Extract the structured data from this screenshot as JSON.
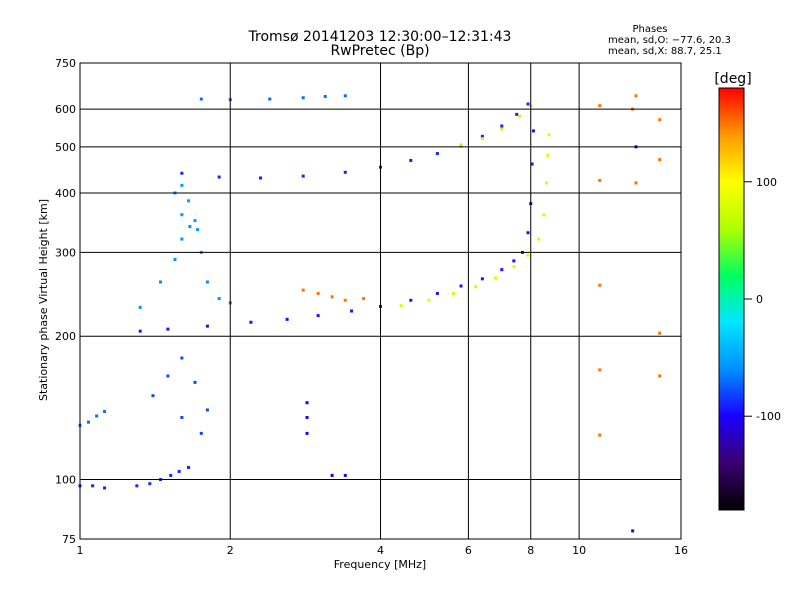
{
  "chart_data": {
    "type": "scatter",
    "title": "Tromsø 20141203 12:30:00–12:31:43",
    "subtitle": "RwPretec (Bp)",
    "xlabel": "Frequency [MHz]",
    "ylabel": "Stationary phase Virtual Height [km]",
    "x_scale": "log",
    "y_scale": "log",
    "xlim": [
      1,
      16
    ],
    "ylim": [
      75,
      750
    ],
    "x_ticks": [
      1,
      2,
      4,
      6,
      8,
      10,
      16
    ],
    "x_tick_labels": [
      "1",
      "2",
      "4",
      "6",
      "8",
      "10",
      "16"
    ],
    "y_ticks": [
      75,
      100,
      200,
      300,
      400,
      500,
      600,
      750
    ],
    "y_tick_labels": [
      "75",
      "100",
      "200",
      "300",
      "400",
      "500",
      "600",
      "750"
    ],
    "grid": true,
    "phase_stats": {
      "title": "Phases",
      "line_O": "mean, sd,O: −77.6, 20.3",
      "line_X": "mean, sd,X:  88.7, 25.1"
    },
    "colorbar": {
      "label": "[deg]",
      "range": [
        -180,
        180
      ],
      "ticks": [
        100,
        0,
        -100
      ],
      "tick_labels": [
        "100",
        "0",
        "-100"
      ],
      "colors": [
        "#000000",
        "#3a0070",
        "#1a00ff",
        "#0090ff",
        "#00e6ff",
        "#00ff60",
        "#b0ff00",
        "#ffff00",
        "#ff9900",
        "#ff0000"
      ]
    },
    "series": [
      {
        "points": [
          [
            1.0,
            97
          ],
          [
            1.06,
            97
          ],
          [
            1.12,
            96
          ],
          [
            1.3,
            97
          ],
          [
            1.38,
            98
          ],
          [
            1.45,
            100
          ],
          [
            1.52,
            102
          ],
          [
            1.58,
            104
          ],
          [
            1.65,
            106
          ]
        ],
        "phase": -90
      },
      {
        "points": [
          [
            1.0,
            130
          ],
          [
            1.04,
            132
          ],
          [
            1.08,
            136
          ],
          [
            1.12,
            139
          ]
        ],
        "phase": -70
      },
      {
        "points": [
          [
            1.32,
            205
          ],
          [
            1.5,
            207
          ],
          [
            1.8,
            210
          ],
          [
            2.2,
            214
          ],
          [
            2.6,
            217
          ],
          [
            3.0,
            221
          ],
          [
            3.5,
            226
          ],
          [
            4.0,
            231
          ],
          [
            4.6,
            238
          ],
          [
            5.2,
            246
          ],
          [
            5.8,
            255
          ],
          [
            6.4,
            264
          ],
          [
            7.0,
            276
          ],
          [
            7.4,
            288
          ],
          [
            7.7,
            300
          ],
          [
            7.9,
            330
          ],
          [
            8.0,
            380
          ],
          [
            8.05,
            460
          ],
          [
            8.1,
            540
          ]
        ],
        "phase": -95
      },
      {
        "points": [
          [
            4.4,
            232
          ],
          [
            5.0,
            238
          ],
          [
            5.6,
            246
          ],
          [
            6.2,
            254
          ],
          [
            6.8,
            265
          ],
          [
            7.4,
            280
          ],
          [
            7.9,
            296
          ],
          [
            8.3,
            320
          ],
          [
            8.5,
            360
          ],
          [
            8.6,
            420
          ],
          [
            8.65,
            480
          ],
          [
            8.7,
            530
          ]
        ],
        "phase": 80
      },
      {
        "points": [
          [
            1.32,
            230
          ],
          [
            1.45,
            260
          ],
          [
            1.55,
            290
          ],
          [
            1.6,
            320
          ],
          [
            1.66,
            340
          ],
          [
            1.75,
            300
          ],
          [
            1.8,
            260
          ],
          [
            1.9,
            240
          ],
          [
            2.0,
            235
          ]
        ],
        "phase": -60
      },
      {
        "points": [
          [
            1.6,
            440
          ],
          [
            1.9,
            432
          ],
          [
            2.3,
            430
          ],
          [
            2.8,
            434
          ],
          [
            3.4,
            442
          ],
          [
            4.0,
            453
          ],
          [
            4.6,
            468
          ],
          [
            5.2,
            484
          ],
          [
            5.8,
            502
          ],
          [
            6.4,
            526
          ],
          [
            7.0,
            553
          ],
          [
            7.5,
            585
          ],
          [
            7.9,
            615
          ]
        ],
        "phase": -90
      },
      {
        "points": [
          [
            5.8,
            505
          ],
          [
            6.4,
            520
          ],
          [
            7.0,
            545
          ],
          [
            7.6,
            580
          ],
          [
            8.0,
            610
          ]
        ],
        "phase": 70
      },
      {
        "points": [
          [
            1.75,
            630
          ],
          [
            2.0,
            628
          ],
          [
            2.4,
            630
          ],
          [
            2.8,
            634
          ],
          [
            3.1,
            638
          ],
          [
            3.4,
            640
          ]
        ],
        "phase": -70
      },
      {
        "points": [
          [
            1.6,
            360
          ],
          [
            1.65,
            385
          ],
          [
            1.7,
            350
          ],
          [
            1.72,
            335
          ],
          [
            1.6,
            415
          ],
          [
            1.55,
            400
          ]
        ],
        "phase": -55
      },
      {
        "points": [
          [
            1.4,
            150
          ],
          [
            1.5,
            165
          ],
          [
            1.6,
            180
          ],
          [
            1.7,
            160
          ],
          [
            1.8,
            140
          ],
          [
            1.75,
            125
          ],
          [
            1.6,
            135
          ]
        ],
        "phase": -80
      },
      {
        "points": [
          [
            2.8,
            250
          ],
          [
            3.0,
            246
          ],
          [
            3.2,
            242
          ],
          [
            3.4,
            238
          ],
          [
            3.7,
            240
          ]
        ],
        "phase": 150
      },
      {
        "points": [
          [
            11.0,
            610
          ],
          [
            13.0,
            640
          ],
          [
            12.8,
            600
          ],
          [
            14.5,
            570
          ],
          [
            14.5,
            470
          ],
          [
            11.0,
            425
          ],
          [
            13.0,
            420
          ],
          [
            11.0,
            256
          ],
          [
            11.0,
            170
          ],
          [
            14.5,
            165
          ],
          [
            11.0,
            124
          ],
          [
            14.5,
            203
          ]
        ],
        "phase": 150
      },
      {
        "points": [
          [
            13.0,
            500
          ],
          [
            12.8,
            78
          ],
          [
            3.2,
            102
          ],
          [
            3.4,
            102
          ],
          [
            2.85,
            145
          ],
          [
            2.85,
            135
          ],
          [
            2.85,
            125
          ]
        ],
        "phase": -100
      }
    ]
  }
}
